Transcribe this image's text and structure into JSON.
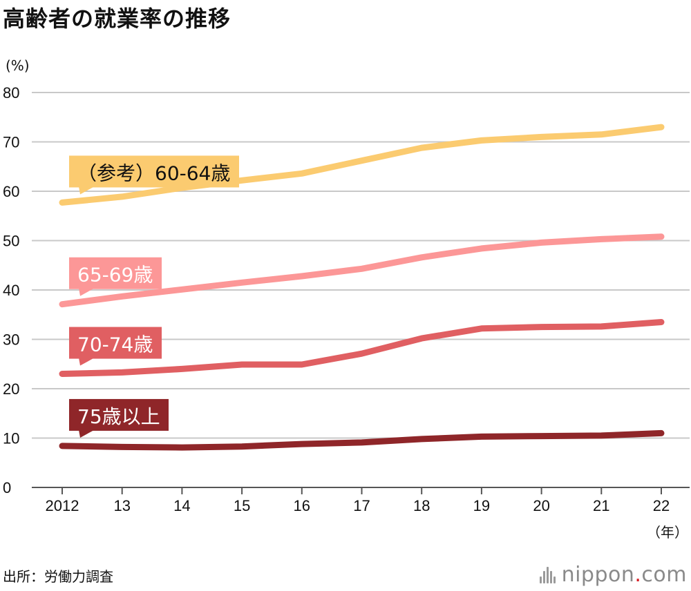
{
  "title": "高齢者の就業率の推移",
  "source": "出所：労働力調査",
  "logo": {
    "prefix": "nippon",
    "dot": ".",
    "suffix": "com"
  },
  "colors": {
    "s60": "#fbcb70",
    "s65": "#fc9797",
    "s70": "#e05f62",
    "s75": "#8f2629",
    "grid": "#c8c8c8",
    "axis": "#555555"
  },
  "chart_data": {
    "type": "line",
    "title": "高齢者の就業率の推移",
    "ylabel": "(%)",
    "xlabel": "（年）",
    "ylim": [
      0,
      80
    ],
    "yticks": [
      0,
      10,
      20,
      30,
      40,
      50,
      60,
      70,
      80
    ],
    "categories": [
      "2012",
      "13",
      "14",
      "15",
      "16",
      "17",
      "18",
      "19",
      "20",
      "21",
      "22"
    ],
    "grid": true,
    "series": [
      {
        "key": "s60",
        "name": "（参考）60-64歳",
        "color": "#fbcb70",
        "values": [
          57.7,
          58.9,
          60.7,
          62.2,
          63.6,
          66.2,
          68.8,
          70.3,
          71.0,
          71.5,
          73.0
        ]
      },
      {
        "key": "s65",
        "name": "65-69歳",
        "color": "#fc9797",
        "values": [
          37.1,
          38.7,
          40.1,
          41.5,
          42.8,
          44.3,
          46.6,
          48.4,
          49.6,
          50.3,
          50.8
        ]
      },
      {
        "key": "s70",
        "name": "70-74歳",
        "color": "#e05f62",
        "values": [
          23.0,
          23.3,
          24.0,
          24.9,
          24.9,
          27.1,
          30.2,
          32.2,
          32.5,
          32.6,
          33.5
        ]
      },
      {
        "key": "s75",
        "name": "75歳以上",
        "color": "#8f2629",
        "values": [
          8.4,
          8.2,
          8.1,
          8.3,
          8.8,
          9.1,
          9.8,
          10.3,
          10.4,
          10.5,
          11.0
        ]
      }
    ]
  }
}
